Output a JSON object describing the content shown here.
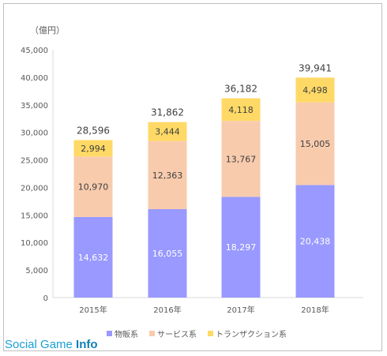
{
  "unit_label": "（億円）",
  "watermark": {
    "text": "Social Game ",
    "bold": "Info"
  },
  "colors": {
    "物販系": "#9999ff",
    "サービス系": "#f8cbad",
    "トランザクション系": "#ffd966"
  },
  "chart_data": {
    "type": "bar",
    "stacked": true,
    "categories": [
      "2015年",
      "2016年",
      "2017年",
      "2018年"
    ],
    "series": [
      {
        "name": "物販系",
        "values": [
          14632,
          16055,
          18297,
          20438
        ],
        "labels": [
          "14,632",
          "16,055",
          "18,297",
          "20,438"
        ]
      },
      {
        "name": "サービス系",
        "values": [
          10970,
          12363,
          13767,
          15005
        ],
        "labels": [
          "10,970",
          "12,363",
          "13,767",
          "15,005"
        ]
      },
      {
        "name": "トランザクション系",
        "values": [
          2994,
          3444,
          4118,
          4498
        ],
        "labels": [
          "2,994",
          "3,444",
          "4,118",
          "4,498"
        ]
      }
    ],
    "totals": [
      28596,
      31862,
      36182,
      39941
    ],
    "total_labels": [
      "28,596",
      "31,862",
      "36,182",
      "39,941"
    ],
    "ylim": [
      0,
      45000
    ],
    "yticks": [
      0,
      5000,
      10000,
      15000,
      20000,
      25000,
      30000,
      35000,
      40000,
      45000
    ],
    "ytick_labels": [
      "0",
      "5,000",
      "10,000",
      "15,000",
      "20,000",
      "25,000",
      "30,000",
      "35,000",
      "40,000",
      "45,000"
    ],
    "grid": false,
    "legend_position": "bottom"
  }
}
